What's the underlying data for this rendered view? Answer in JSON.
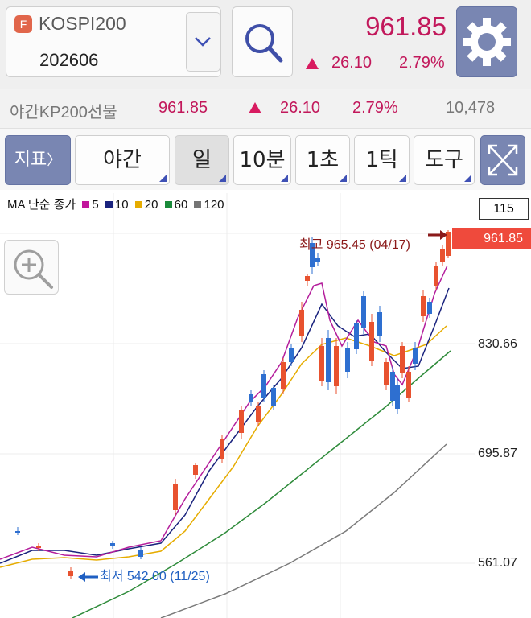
{
  "symbol": {
    "badge": "F",
    "name": "KOSPI200",
    "code": "202606"
  },
  "quote": {
    "price": "961.85",
    "change": "26.10",
    "rate": "2.79%"
  },
  "sub": {
    "label": "야간KP200선물",
    "price": "961.85",
    "change": "26.10",
    "rate": "2.79%",
    "volume": "10,478"
  },
  "toolbar": {
    "indicator": "지표",
    "indicator_arrow": "〉",
    "session": "야간",
    "period_day": "일",
    "period_10m": "10분",
    "period_1s": "1초",
    "period_1tick": "1틱",
    "tools": "도구"
  },
  "legend": {
    "title": "MA 단순 종가",
    "items": [
      {
        "label": "5",
        "color": "#c2169c"
      },
      {
        "label": "10",
        "color": "#1a237e"
      },
      {
        "label": "20",
        "color": "#e6ac00"
      },
      {
        "label": "60",
        "color": "#1a8a3a"
      },
      {
        "label": "120",
        "color": "#757575"
      }
    ]
  },
  "value_box": "115",
  "current_price_tag": "961.85",
  "y_labels": [
    "830.66",
    "695.87",
    "561.07"
  ],
  "high_note": "최고 965.45 (04/17)",
  "low_note": "최저 542.00 (11/25)",
  "colors": {
    "up": "#e8522f",
    "down": "#2e6fd0",
    "accent": "#c2185b",
    "button_blue": "#7986b2"
  },
  "icons": [
    "dropdown-chevron-icon",
    "search-icon",
    "gear-icon",
    "zoom-in-icon",
    "expand-icon"
  ]
}
